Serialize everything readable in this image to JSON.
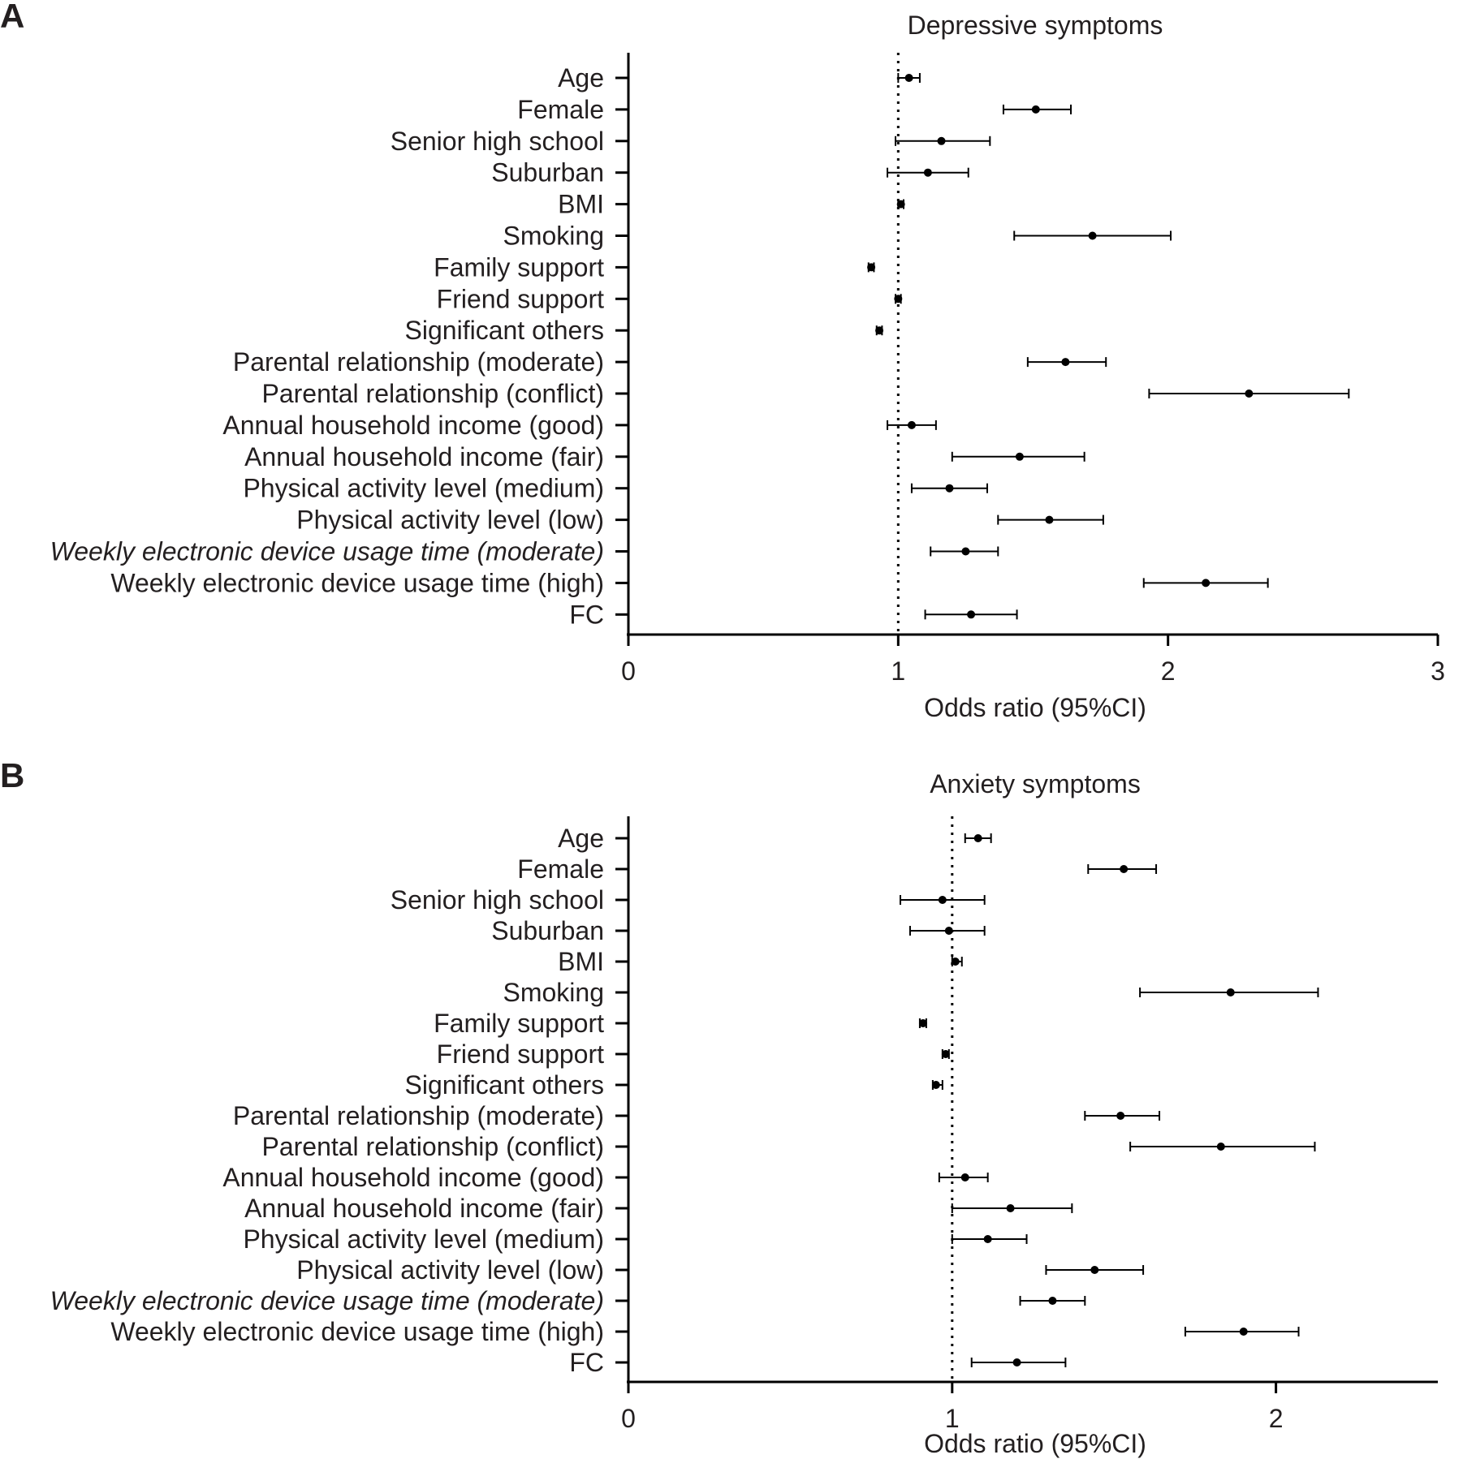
{
  "chart_data": [
    {
      "type": "forest",
      "panel_label": "A",
      "title": "Depressive symptoms",
      "xlabel": "Odds ratio (95%CI)",
      "xlim": [
        0,
        3
      ],
      "xticks": [
        "0",
        "1",
        "2",
        "3"
      ],
      "reference_line": 1,
      "categories": [
        "Age",
        "Female",
        "Senior high school",
        "Suburban",
        "BMI",
        "Smoking",
        "Family support",
        "Friend support",
        "Significant others",
        "Parental relationship (moderate)",
        "Parental relationship (conflict)",
        "Annual household income (good)",
        "Annual household income (fair)",
        "Physical activity level (medium)",
        "Physical activity level (low)",
        "Weekly electronic device usage time (moderate)",
        "Weekly electronic device usage time (high)",
        "FC"
      ],
      "or": [
        1.04,
        1.51,
        1.16,
        1.11,
        1.01,
        1.72,
        0.9,
        1.0,
        0.93,
        1.62,
        2.3,
        1.05,
        1.45,
        1.19,
        1.56,
        1.25,
        2.14,
        1.27
      ],
      "lower": [
        1.0,
        1.39,
        0.99,
        0.96,
        1.0,
        1.43,
        0.89,
        0.99,
        0.92,
        1.48,
        1.93,
        0.96,
        1.2,
        1.05,
        1.37,
        1.12,
        1.91,
        1.1
      ],
      "upper": [
        1.08,
        1.64,
        1.34,
        1.26,
        1.02,
        2.01,
        0.91,
        1.01,
        0.94,
        1.77,
        2.67,
        1.14,
        1.69,
        1.33,
        1.76,
        1.37,
        2.37,
        1.44
      ]
    },
    {
      "type": "forest",
      "panel_label": "B",
      "title": "Anxiety symptoms",
      "xlabel": "Odds ratio (95%CI)",
      "xlim": [
        0,
        2.5
      ],
      "xticks": [
        "0",
        "1",
        "2"
      ],
      "reference_line": 1,
      "categories": [
        "Age",
        "Female",
        "Senior high school",
        "Suburban",
        "BMI",
        "Smoking",
        "Family support",
        "Friend support",
        "Significant others",
        "Parental relationship (moderate)",
        "Parental relationship (conflict)",
        "Annual household income (good)",
        "Annual household income (fair)",
        "Physical activity level (medium)",
        "Physical activity level (low)",
        "Weekly electronic device usage time (moderate)",
        "Weekly electronic device usage time (high)",
        "FC"
      ],
      "or": [
        1.08,
        1.53,
        0.97,
        0.99,
        1.01,
        1.86,
        0.91,
        0.98,
        0.95,
        1.52,
        1.83,
        1.04,
        1.18,
        1.11,
        1.44,
        1.31,
        1.9,
        1.2
      ],
      "lower": [
        1.04,
        1.42,
        0.84,
        0.87,
        1.0,
        1.58,
        0.9,
        0.97,
        0.94,
        1.41,
        1.55,
        0.96,
        1.0,
        1.0,
        1.29,
        1.21,
        1.72,
        1.06
      ],
      "upper": [
        1.12,
        1.63,
        1.1,
        1.1,
        1.03,
        2.13,
        0.92,
        0.99,
        0.97,
        1.64,
        2.12,
        1.11,
        1.37,
        1.23,
        1.59,
        1.41,
        2.07,
        1.35
      ]
    }
  ]
}
